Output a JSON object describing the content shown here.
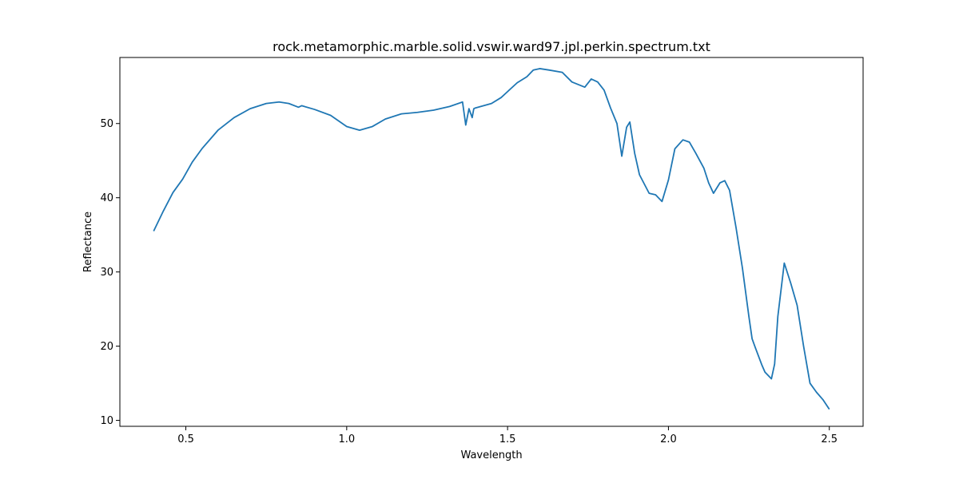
{
  "chart_data": {
    "type": "line",
    "title": "rock.metamorphic.marble.solid.vswir.ward97.jpl.perkin.spectrum.txt",
    "xlabel": "Wavelength",
    "ylabel": "Reflectance",
    "xlim": [
      0.295,
      2.605
    ],
    "ylim": [
      9.2,
      58.9
    ],
    "xticks": [
      0.5,
      1.0,
      1.5,
      2.0,
      2.5
    ],
    "xtick_labels": [
      "0.5",
      "1.0",
      "1.5",
      "2.0",
      "2.5"
    ],
    "yticks": [
      10,
      20,
      30,
      40,
      50
    ],
    "ytick_labels": [
      "10",
      "20",
      "30",
      "40",
      "50"
    ],
    "grid": false,
    "series": [
      {
        "color": "#1f77b4",
        "x": [
          0.4,
          0.43,
          0.46,
          0.49,
          0.52,
          0.55,
          0.6,
          0.65,
          0.7,
          0.75,
          0.79,
          0.82,
          0.85,
          0.86,
          0.9,
          0.95,
          1.0,
          1.04,
          1.08,
          1.12,
          1.17,
          1.22,
          1.27,
          1.32,
          1.36,
          1.37,
          1.38,
          1.39,
          1.395,
          1.4,
          1.45,
          1.48,
          1.5,
          1.53,
          1.56,
          1.58,
          1.6,
          1.63,
          1.67,
          1.7,
          1.74,
          1.76,
          1.78,
          1.8,
          1.82,
          1.84,
          1.855,
          1.87,
          1.88,
          1.895,
          1.91,
          1.94,
          1.96,
          1.98,
          2.0,
          2.02,
          2.045,
          2.065,
          2.085,
          2.11,
          2.125,
          2.14,
          2.16,
          2.175,
          2.19,
          2.21,
          2.23,
          2.25,
          2.26,
          2.27,
          2.29,
          2.3,
          2.32,
          2.33,
          2.34,
          2.36,
          2.38,
          2.4,
          2.42,
          2.44,
          2.46,
          2.48,
          2.5
        ],
        "y": [
          35.5,
          38.2,
          40.7,
          42.5,
          44.8,
          46.6,
          49.1,
          50.8,
          52.0,
          52.7,
          52.9,
          52.7,
          52.2,
          52.4,
          51.9,
          51.1,
          49.6,
          49.1,
          49.6,
          50.6,
          51.3,
          51.5,
          51.8,
          52.3,
          52.9,
          49.8,
          52.0,
          50.8,
          52.0,
          52.1,
          52.7,
          53.5,
          54.3,
          55.5,
          56.3,
          57.2,
          57.4,
          57.2,
          56.9,
          55.6,
          54.9,
          56.0,
          55.6,
          54.5,
          52.1,
          50.0,
          45.6,
          49.5,
          50.2,
          46.0,
          43.1,
          40.6,
          40.4,
          39.5,
          42.4,
          46.6,
          47.8,
          47.5,
          46.0,
          44.0,
          42.0,
          40.6,
          42.0,
          42.3,
          41.0,
          36.0,
          30.5,
          24.0,
          21.0,
          19.8,
          17.5,
          16.5,
          15.6,
          17.6,
          24.0,
          31.2,
          28.5,
          25.5,
          20.0,
          15.0,
          13.8,
          12.8,
          11.5
        ]
      }
    ]
  }
}
